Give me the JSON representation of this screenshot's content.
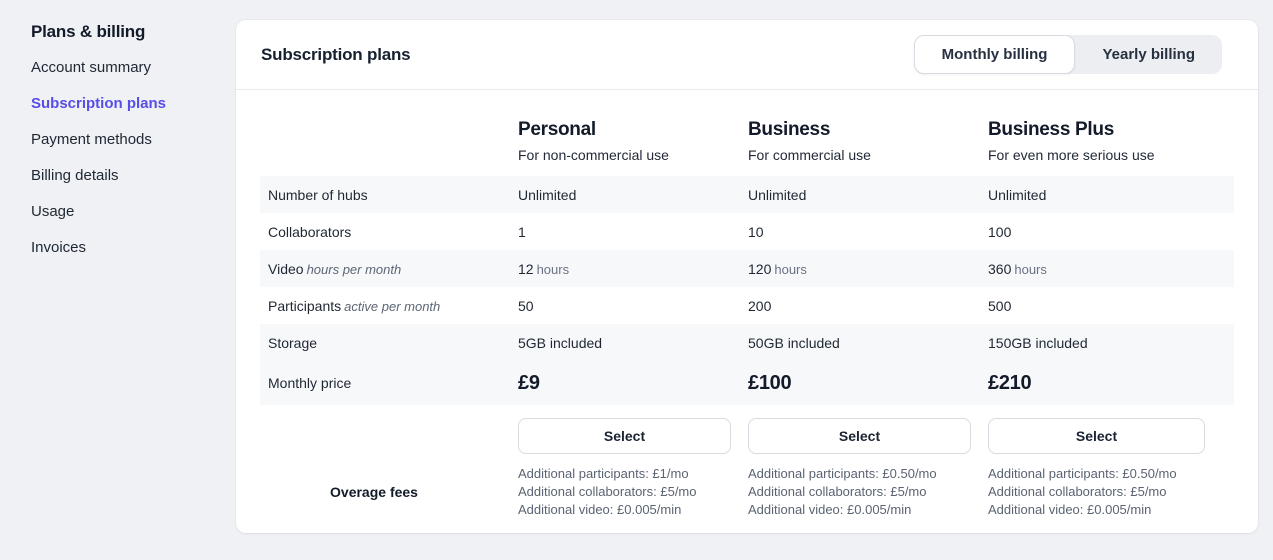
{
  "theme": {
    "accent": "#584DE6",
    "row_shade": "#F7F8FA",
    "page_bg": "#EFF1F4",
    "text_dark": "#131B2A",
    "text_muted": "#5B6472"
  },
  "sidebar": {
    "title": "Plans & billing",
    "items": [
      {
        "label": "Account summary",
        "active": false
      },
      {
        "label": "Subscription plans",
        "active": true
      },
      {
        "label": "Payment methods",
        "active": false
      },
      {
        "label": "Billing details",
        "active": false
      },
      {
        "label": "Usage",
        "active": false
      },
      {
        "label": "Invoices",
        "active": false
      }
    ]
  },
  "header": {
    "title": "Subscription plans",
    "toggle": {
      "options": [
        "Monthly billing",
        "Yearly billing"
      ],
      "selected": "Monthly billing"
    }
  },
  "plans": [
    {
      "name": "Personal",
      "tagline": "For non-commercial use",
      "select_label": "Select",
      "overages": [
        "Additional participants: £1/mo",
        "Additional collaborators: £5/mo",
        "Additional video: £0.005/min"
      ]
    },
    {
      "name": "Business",
      "tagline": "For commercial use",
      "select_label": "Select",
      "overages": [
        "Additional participants: £0.50/mo",
        "Additional collaborators: £5/mo",
        "Additional video: £0.005/min"
      ]
    },
    {
      "name": "Business Plus",
      "tagline": "For even more serious use",
      "select_label": "Select",
      "overages": [
        "Additional participants: £0.50/mo",
        "Additional collaborators: £5/mo",
        "Additional video: £0.005/min"
      ]
    }
  ],
  "table": {
    "rows": [
      {
        "label": "Number of hubs",
        "note": "",
        "values": [
          "Unlimited",
          "Unlimited",
          "Unlimited"
        ]
      },
      {
        "label": "Collaborators",
        "note": "",
        "values": [
          "1",
          "10",
          "100"
        ]
      },
      {
        "label": "Video",
        "note": "hours per month",
        "unit": "hours",
        "values": [
          "12",
          "120",
          "360"
        ]
      },
      {
        "label": "Participants",
        "note": "active per month",
        "values": [
          "50",
          "200",
          "500"
        ]
      },
      {
        "label": "Storage",
        "note": "",
        "values": [
          "5GB included",
          "50GB included",
          "150GB included"
        ]
      },
      {
        "label": "Monthly price",
        "note": "",
        "values": [
          "£9",
          "£100",
          "£210"
        ]
      }
    ],
    "overage_heading": "Overage fees"
  }
}
